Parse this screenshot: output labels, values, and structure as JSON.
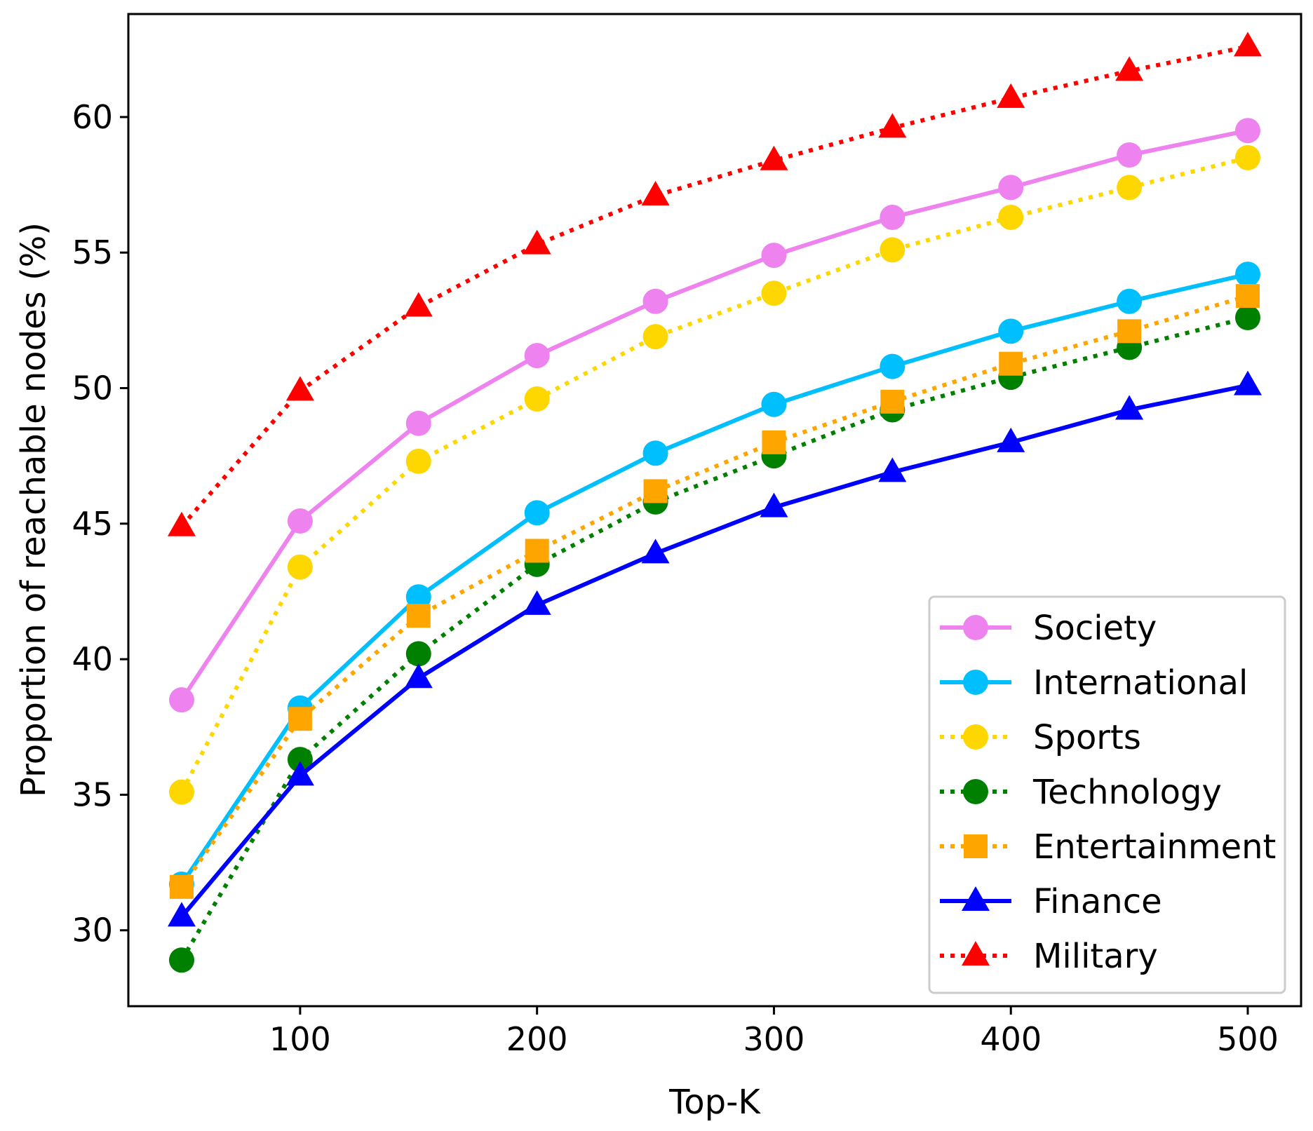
{
  "chart_data": {
    "type": "line",
    "title": "",
    "xlabel": "Top-K",
    "ylabel": "Proportion of reachable nodes (%)",
    "xlim": [
      27.5,
      522.5
    ],
    "ylim": [
      27.2,
      63.8
    ],
    "xticks": [
      100,
      200,
      300,
      400,
      500
    ],
    "yticks": [
      30,
      35,
      40,
      45,
      50,
      55,
      60
    ],
    "grid": false,
    "legend_position": "lower-right",
    "x": [
      50,
      100,
      150,
      200,
      250,
      300,
      350,
      400,
      450,
      500
    ],
    "series": [
      {
        "name": "Society",
        "color": "#ee82ee",
        "linestyle": "solid",
        "marker": "circle",
        "values": [
          38.5,
          45.1,
          48.7,
          51.2,
          53.2,
          54.9,
          56.3,
          57.4,
          58.6,
          59.5
        ]
      },
      {
        "name": "International",
        "color": "#00bfff",
        "linestyle": "solid",
        "marker": "circle",
        "values": [
          31.7,
          38.2,
          42.3,
          45.4,
          47.6,
          49.4,
          50.8,
          52.1,
          53.2,
          54.2
        ]
      },
      {
        "name": "Sports",
        "color": "#ffd700",
        "linestyle": "dotted",
        "marker": "circle",
        "values": [
          35.1,
          43.4,
          47.3,
          49.6,
          51.9,
          53.5,
          55.1,
          56.3,
          57.4,
          58.5
        ]
      },
      {
        "name": "Technology",
        "color": "#008000",
        "linestyle": "dotted",
        "marker": "circle",
        "values": [
          28.9,
          36.3,
          40.2,
          43.5,
          45.8,
          47.5,
          49.2,
          50.4,
          51.5,
          52.6
        ]
      },
      {
        "name": "Entertainment",
        "color": "#ffa500",
        "linestyle": "dotted",
        "marker": "square",
        "values": [
          31.6,
          37.8,
          41.6,
          44.0,
          46.2,
          48.0,
          49.5,
          50.9,
          52.1,
          53.4
        ]
      },
      {
        "name": "Finance",
        "color": "#0000ff",
        "linestyle": "solid",
        "marker": "triangle",
        "values": [
          30.5,
          35.7,
          39.3,
          42.0,
          43.9,
          45.6,
          46.9,
          48.0,
          49.2,
          50.1
        ]
      },
      {
        "name": "Military",
        "color": "#ff0000",
        "linestyle": "dotted",
        "marker": "triangle",
        "values": [
          44.9,
          49.9,
          53.0,
          55.3,
          57.1,
          58.4,
          59.6,
          60.7,
          61.7,
          62.6
        ]
      }
    ]
  }
}
